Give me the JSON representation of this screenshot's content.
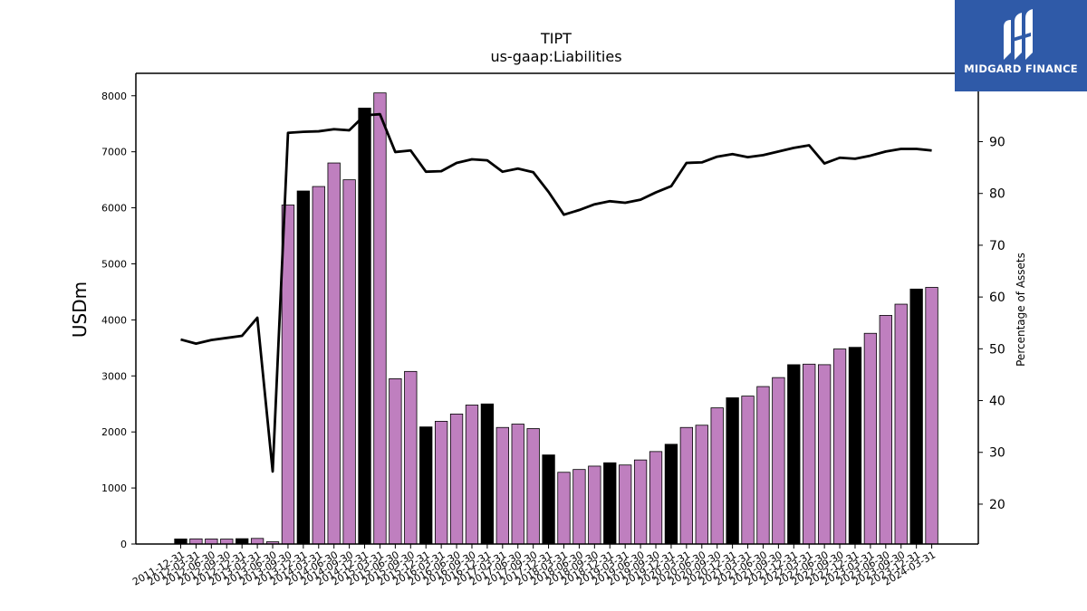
{
  "logo": {
    "text": "MIDGARD FINANCE",
    "icon": "midgard-logo-icon",
    "color": "#2f5aa8"
  },
  "chart_data": {
    "type": "bar",
    "title": "TIPT",
    "subtitle": "us-gaap:Liabilities",
    "ylabel": "USDm",
    "y2label": "Percentage of Assets",
    "ylim": [
      0,
      8400
    ],
    "y2lim": [
      12.3,
      103.2
    ],
    "yticks": [
      0,
      1000,
      2000,
      3000,
      4000,
      5000,
      6000,
      7000,
      8000
    ],
    "y2ticks": [
      20,
      30,
      40,
      50,
      60,
      70,
      80,
      90
    ],
    "grid": false,
    "colors": {
      "annual": "#000000",
      "quarterly": "#bf7fbf",
      "line": "#000000"
    },
    "categories": [
      "2011-12-31",
      "2012-03-31",
      "2012-06-30",
      "2012-09-30",
      "2012-12-31",
      "2013-03-31",
      "2013-06-30",
      "2013-09-30",
      "2013-12-31",
      "2014-03-31",
      "2014-06-30",
      "2014-09-30",
      "2014-12-31",
      "2015-03-31",
      "2015-06-30",
      "2015-09-30",
      "2015-12-31",
      "2016-03-31",
      "2016-06-30",
      "2016-09-30",
      "2016-12-31",
      "2017-03-31",
      "2017-06-30",
      "2017-09-30",
      "2017-12-31",
      "2018-03-31",
      "2018-06-30",
      "2018-09-30",
      "2018-12-31",
      "2019-03-31",
      "2019-06-30",
      "2019-09-30",
      "2019-12-31",
      "2020-03-31",
      "2020-06-30",
      "2020-09-30",
      "2020-12-31",
      "2021-03-31",
      "2021-06-30",
      "2021-09-30",
      "2021-12-31",
      "2022-03-31",
      "2022-06-30",
      "2022-09-30",
      "2022-12-31",
      "2023-03-31",
      "2023-06-30",
      "2023-09-30",
      "2023-12-31",
      "2024-03-31"
    ],
    "series": [
      {
        "values": [
          90,
          92,
          90,
          88,
          95,
          100,
          40,
          6050,
          6300,
          6380,
          6800,
          6500,
          7780,
          8050,
          2950,
          3080,
          2090,
          2190,
          2320,
          2480,
          2500,
          2080,
          2140,
          2060,
          1590,
          1280,
          1330,
          1390,
          1450,
          1410,
          1500,
          1650,
          1780,
          2080,
          2120,
          2430,
          2610,
          2640,
          2810,
          2970,
          3200,
          3210,
          3200,
          3480,
          3510,
          3760,
          4080,
          4280,
          4550,
          4580
        ]
      },
      {
        "values": [
          51.8,
          51.0,
          51.7,
          52.1,
          52.5,
          56.0,
          26.3,
          91.7,
          91.9,
          92.0,
          92.4,
          92.2,
          95.1,
          95.3,
          88.0,
          88.3,
          84.2,
          84.3,
          85.9,
          86.6,
          86.4,
          84.2,
          84.8,
          84.1,
          80.3,
          75.9,
          76.8,
          77.9,
          78.5,
          78.2,
          78.8,
          80.2,
          81.4,
          85.9,
          86.0,
          87.1,
          87.6,
          87.0,
          87.4,
          88.1,
          88.8,
          89.3,
          85.8,
          86.9,
          86.7,
          87.3,
          88.1,
          88.6,
          88.6,
          88.3
        ]
      }
    ]
  }
}
